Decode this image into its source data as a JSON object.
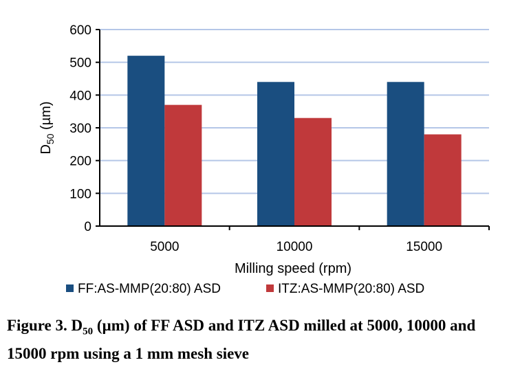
{
  "chart_data": {
    "type": "bar",
    "categories": [
      "5000",
      "10000",
      "15000"
    ],
    "series": [
      {
        "name": "FF:AS-MMP(20:80) ASD",
        "values": [
          520,
          440,
          440
        ],
        "color": "#1a4e80"
      },
      {
        "name": "ITZ:AS-MMP(20:80) ASD",
        "values": [
          370,
          330,
          280
        ],
        "color": "#c0393b"
      }
    ],
    "xlabel": "Milling speed (rpm)",
    "ylabel_main": "D",
    "ylabel_sub": "50",
    "ylabel_unit": " (µm)",
    "ylim": [
      0,
      600
    ],
    "yticks": [
      0,
      100,
      200,
      300,
      400,
      500,
      600
    ],
    "grid": true,
    "gridline_color": "#b4c6e7",
    "legend_position": "bottom"
  },
  "caption": {
    "prefix": "Figure 3. D",
    "sub": "50",
    "rest": " (µm) of FF ASD and ITZ ASD milled at 5000, 10000 and 15000 rpm using a 1 mm mesh sieve"
  }
}
